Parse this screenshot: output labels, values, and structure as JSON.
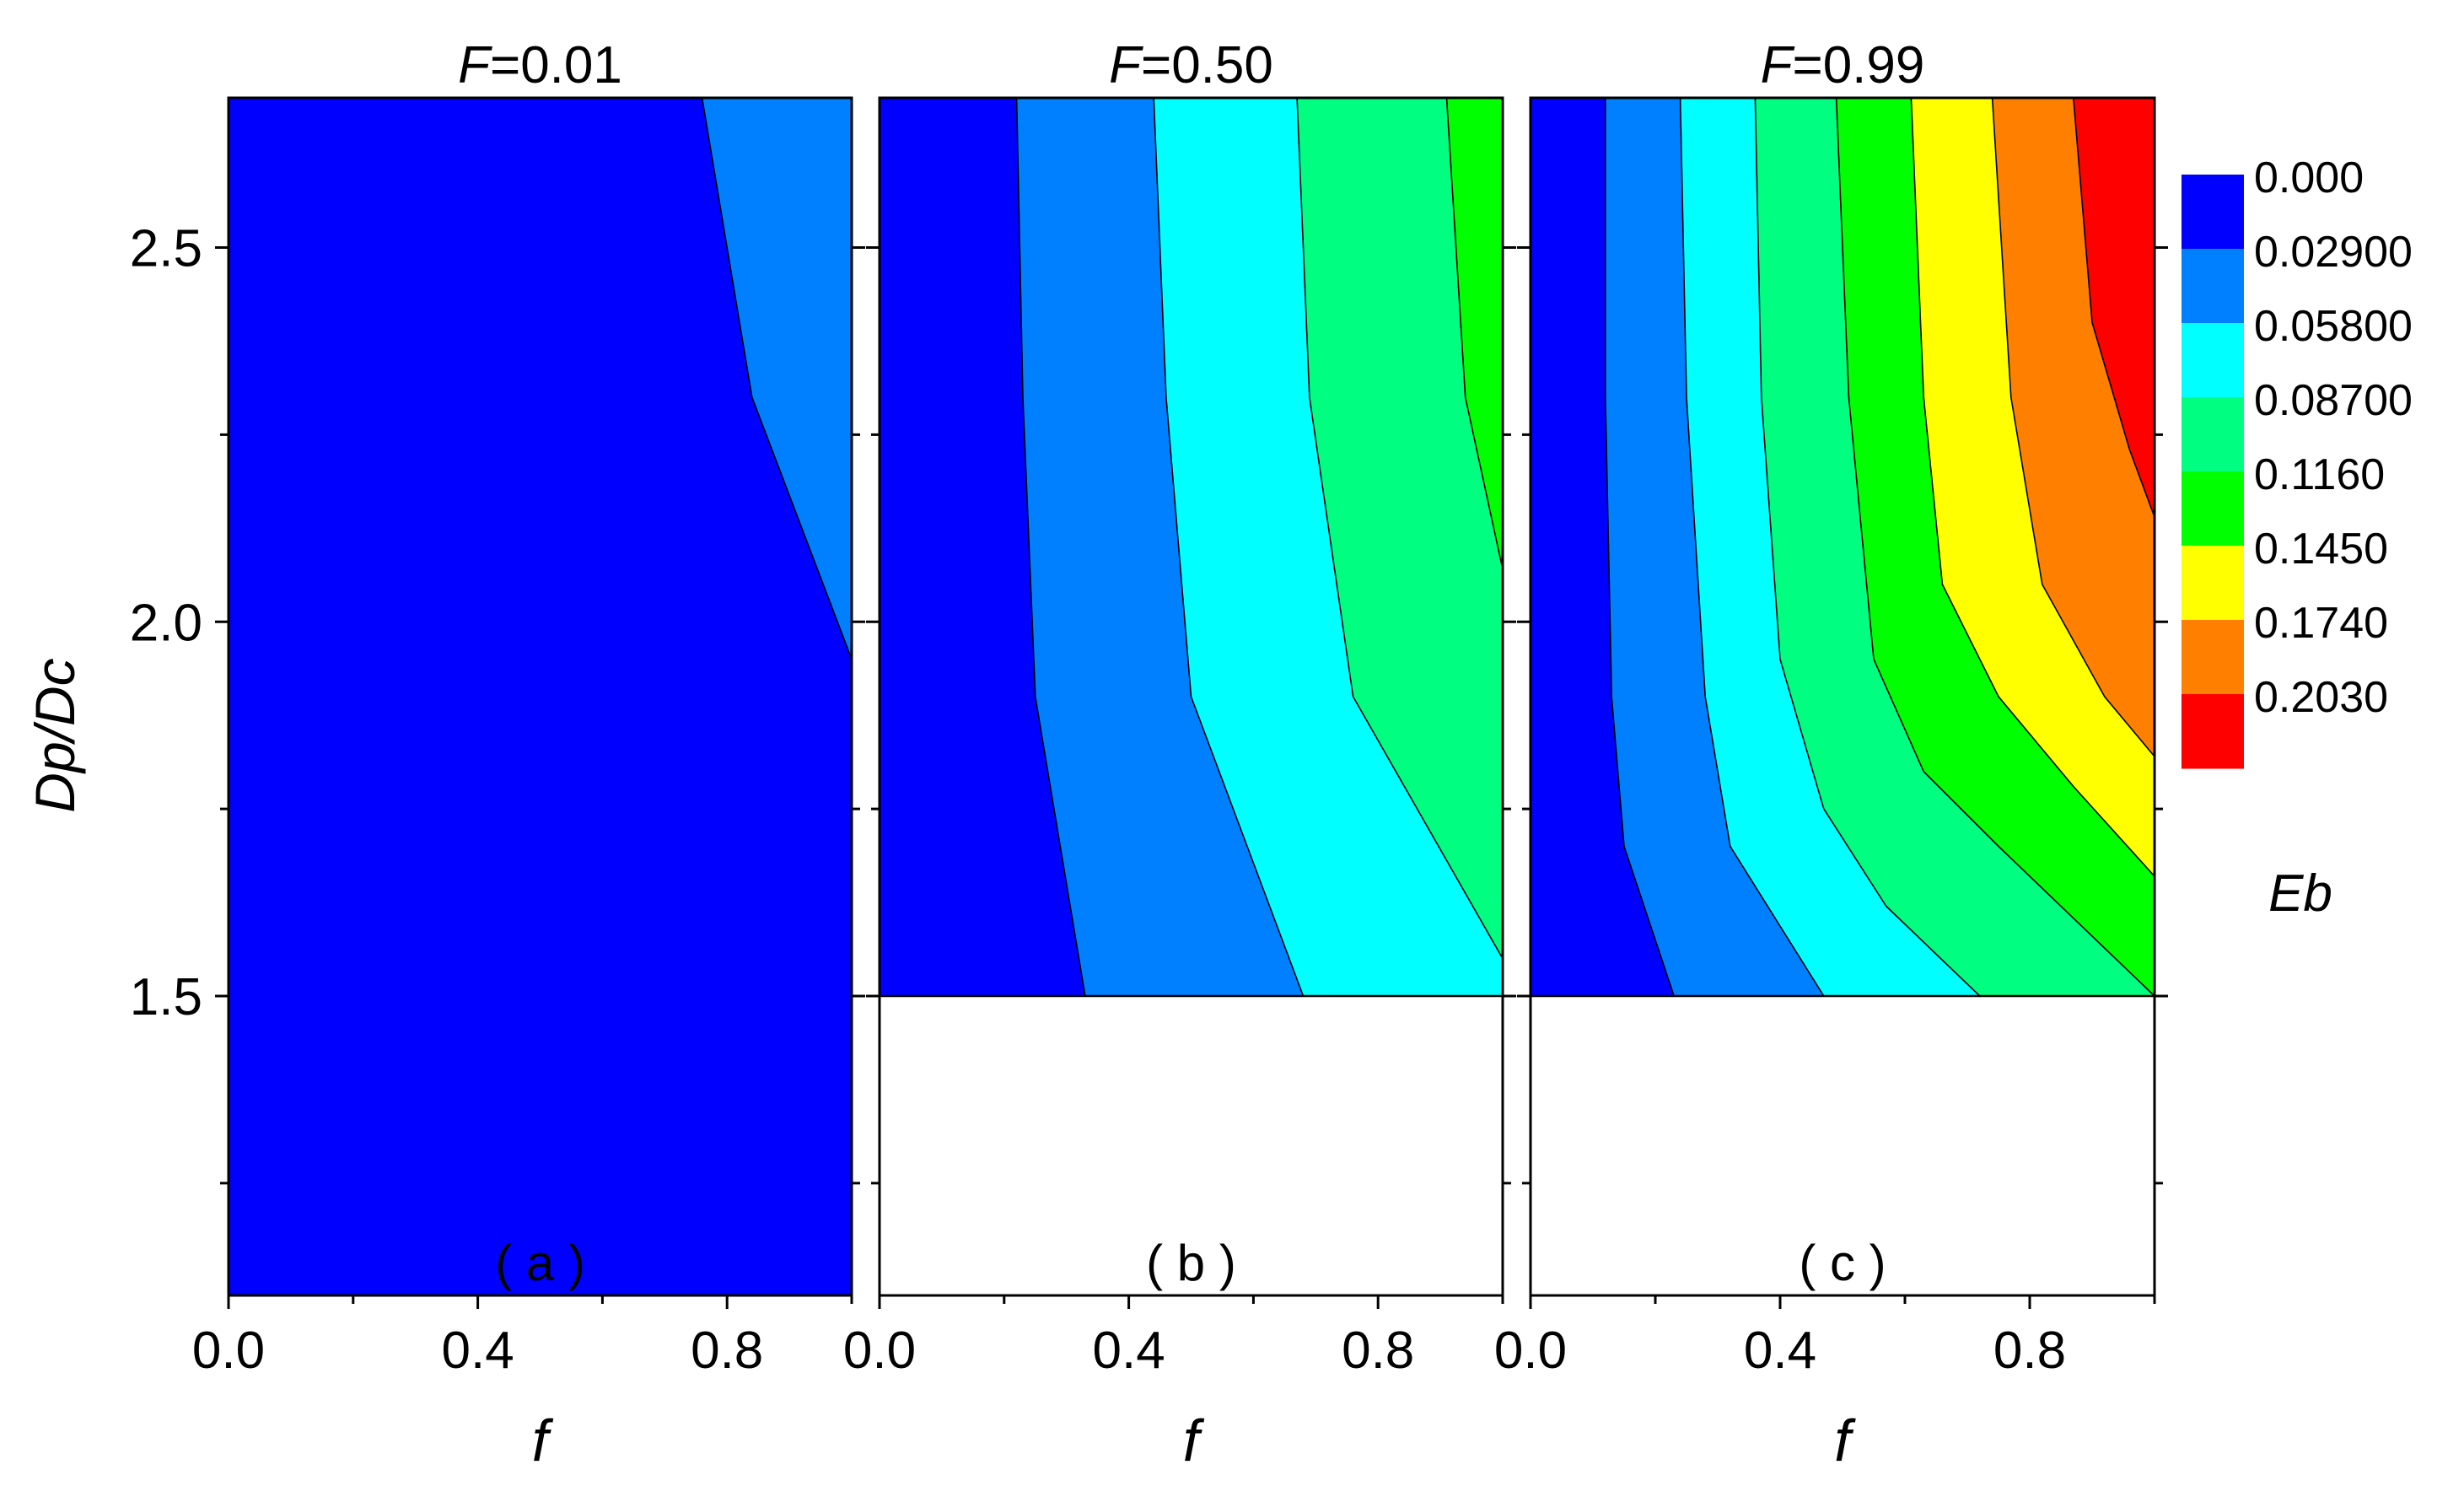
{
  "chart_data": {
    "type": "contour",
    "subplot_titles": [
      {
        "var": "F",
        "eq": "=0.01"
      },
      {
        "var": "F",
        "eq": "=0.50"
      },
      {
        "var": "F",
        "eq": "=0.99"
      }
    ],
    "panel_labels": [
      "( a )",
      "( b )",
      "( c )"
    ],
    "xlabel": "f",
    "ylabel": "Dp/Dc",
    "xlim": [
      0,
      1
    ],
    "ylim": [
      1.1,
      2.7
    ],
    "x_ticks": [
      0.0,
      0.4,
      0.8
    ],
    "x_tick_labels": [
      "0.0",
      "0.4",
      "0.8"
    ],
    "y_ticks": [
      1.5,
      2.0,
      2.5
    ],
    "y_tick_labels": [
      "1.5",
      "2.0",
      "2.5"
    ],
    "legend": {
      "title": "Eb",
      "placement": "right",
      "levels": [
        "0.000",
        "0.02900",
        "0.05800",
        "0.08700",
        "0.1160",
        "0.1450",
        "0.1740",
        "0.2030"
      ],
      "colors": [
        "#0000ff",
        "#0080ff",
        "#00ffff",
        "#00ff80",
        "#00ff00",
        "#ffff00",
        "#ff8000",
        "#ff0000"
      ]
    },
    "panels": [
      {
        "F": 0.01,
        "y_range": [
          1.1,
          2.7
        ],
        "boundaries": [
          [
            [
              0.76,
              2.7
            ],
            [
              0.84,
              2.3
            ],
            [
              1.0,
              1.95
            ]
          ]
        ]
      },
      {
        "F": 0.5,
        "y_range": [
          1.5,
          2.7
        ],
        "boundaries": [
          [
            [
              0.22,
              2.7
            ],
            [
              0.23,
              2.3
            ],
            [
              0.25,
              1.9
            ],
            [
              0.33,
              1.5
            ]
          ],
          [
            [
              0.44,
              2.7
            ],
            [
              0.46,
              2.3
            ],
            [
              0.5,
              1.9
            ],
            [
              0.68,
              1.5
            ]
          ],
          [
            [
              0.67,
              2.7
            ],
            [
              0.69,
              2.3
            ],
            [
              0.76,
              1.9
            ],
            [
              1.0,
              1.55
            ]
          ],
          [
            [
              0.91,
              2.7
            ],
            [
              0.94,
              2.3
            ],
            [
              1.0,
              2.07
            ]
          ]
        ]
      },
      {
        "F": 0.99,
        "y_range": [
          1.5,
          2.7
        ],
        "boundaries": [
          [
            [
              0.12,
              2.7
            ],
            [
              0.12,
              2.3
            ],
            [
              0.13,
              1.9
            ],
            [
              0.15,
              1.7
            ],
            [
              0.23,
              1.5
            ]
          ],
          [
            [
              0.24,
              2.7
            ],
            [
              0.25,
              2.3
            ],
            [
              0.28,
              1.9
            ],
            [
              0.32,
              1.7
            ],
            [
              0.47,
              1.5
            ]
          ],
          [
            [
              0.36,
              2.7
            ],
            [
              0.37,
              2.3
            ],
            [
              0.4,
              1.95
            ],
            [
              0.47,
              1.75
            ],
            [
              0.57,
              1.62
            ],
            [
              0.72,
              1.5
            ]
          ],
          [
            [
              0.49,
              2.7
            ],
            [
              0.51,
              2.3
            ],
            [
              0.55,
              1.95
            ],
            [
              0.63,
              1.8
            ],
            [
              0.75,
              1.7
            ],
            [
              1.0,
              1.5
            ]
          ],
          [
            [
              0.61,
              2.7
            ],
            [
              0.63,
              2.3
            ],
            [
              0.66,
              2.05
            ],
            [
              0.75,
              1.9
            ],
            [
              0.87,
              1.78
            ],
            [
              1.0,
              1.66
            ]
          ],
          [
            [
              0.74,
              2.7
            ],
            [
              0.77,
              2.3
            ],
            [
              0.82,
              2.05
            ],
            [
              0.92,
              1.9
            ],
            [
              1.0,
              1.82
            ]
          ],
          [
            [
              0.87,
              2.7
            ],
            [
              0.9,
              2.4
            ],
            [
              0.96,
              2.23
            ],
            [
              1.0,
              2.14
            ]
          ]
        ]
      }
    ]
  }
}
